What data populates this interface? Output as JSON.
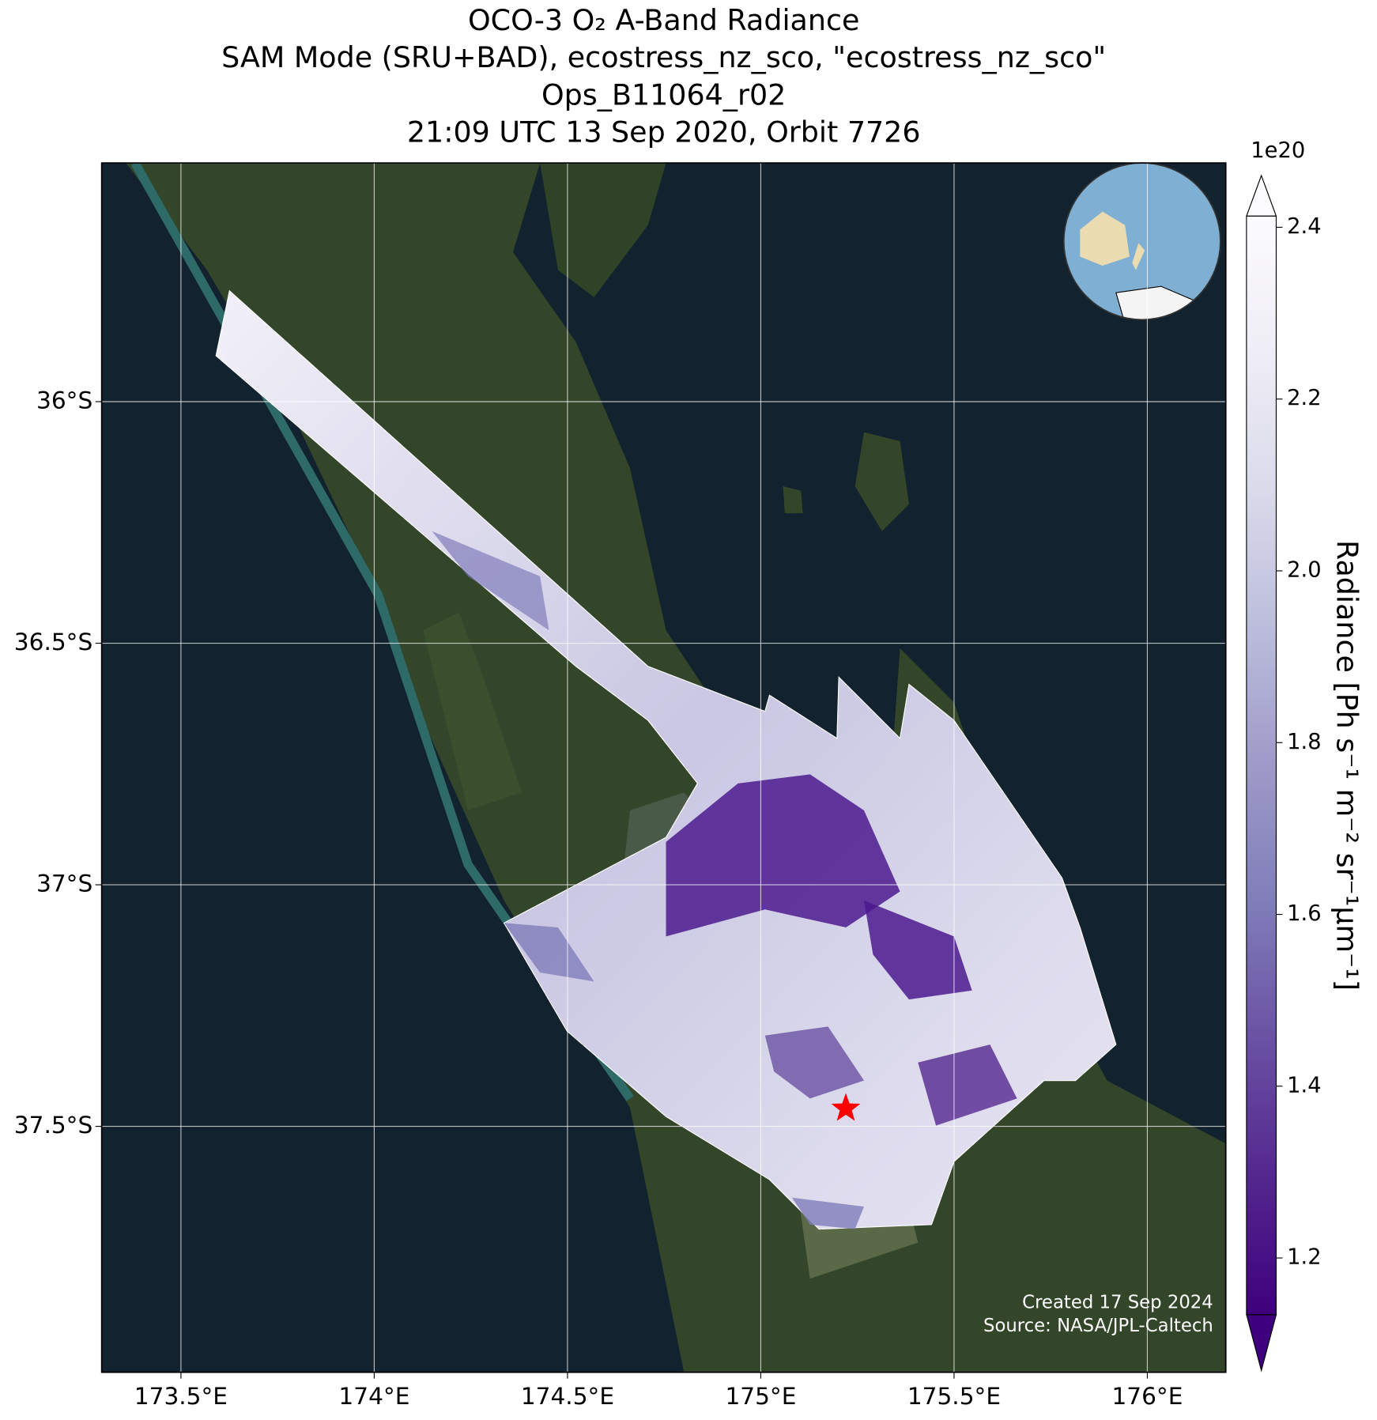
{
  "chart_data": {
    "type": "map",
    "title": [
      "OCO-3 O₂ A-Band Radiance",
      "SAM Mode (SRU+BAD), ecostress_nz_sco, \"ecostress_nz_sco\"",
      "Ops_B11064_r02",
      "21:09 UTC 13 Sep 2020, Orbit 7726"
    ],
    "xlim": [
      173.295,
      176.203
    ],
    "ylim": [
      -38.009,
      -35.506
    ],
    "xticks": [
      {
        "value": 173.5,
        "label": "173.5°E"
      },
      {
        "value": 174,
        "label": "174°E"
      },
      {
        "value": 174.5,
        "label": "174.5°E"
      },
      {
        "value": 175,
        "label": "175°E"
      },
      {
        "value": 175.5,
        "label": "175.5°E"
      },
      {
        "value": 176,
        "label": "176°E"
      }
    ],
    "yticks": [
      {
        "value": -36,
        "label": "36°S"
      },
      {
        "value": -36.5,
        "label": "36.5°S"
      },
      {
        "value": -37,
        "label": "37°S"
      },
      {
        "value": -37.5,
        "label": "37.5°S"
      }
    ],
    "grid": true,
    "site": {
      "lon": 175.22,
      "lat": -37.463,
      "color": "#ff0000"
    },
    "colorbar": {
      "label": "Radiance [Ph s⁻¹ m⁻² sr⁻¹μm⁻¹]",
      "exponent": "1e20",
      "clim": [
        1.134,
        2.413
      ],
      "ticks": [
        1.2,
        1.4,
        1.6,
        1.8,
        {
          "value": 2,
          "label": "2.0"
        },
        2.2,
        2.4
      ],
      "colors": [
        "#3f007d",
        "#54278f",
        "#6a51a3",
        "#807dba",
        "#9e9ac8",
        "#bcbddc",
        "#dadaeb",
        "#efedf5",
        "#fcfbfd"
      ],
      "extend": "both"
    },
    "footer": [
      "Created 17 Sep 2024",
      "Source: NASA/JPL-Caltech"
    ]
  }
}
